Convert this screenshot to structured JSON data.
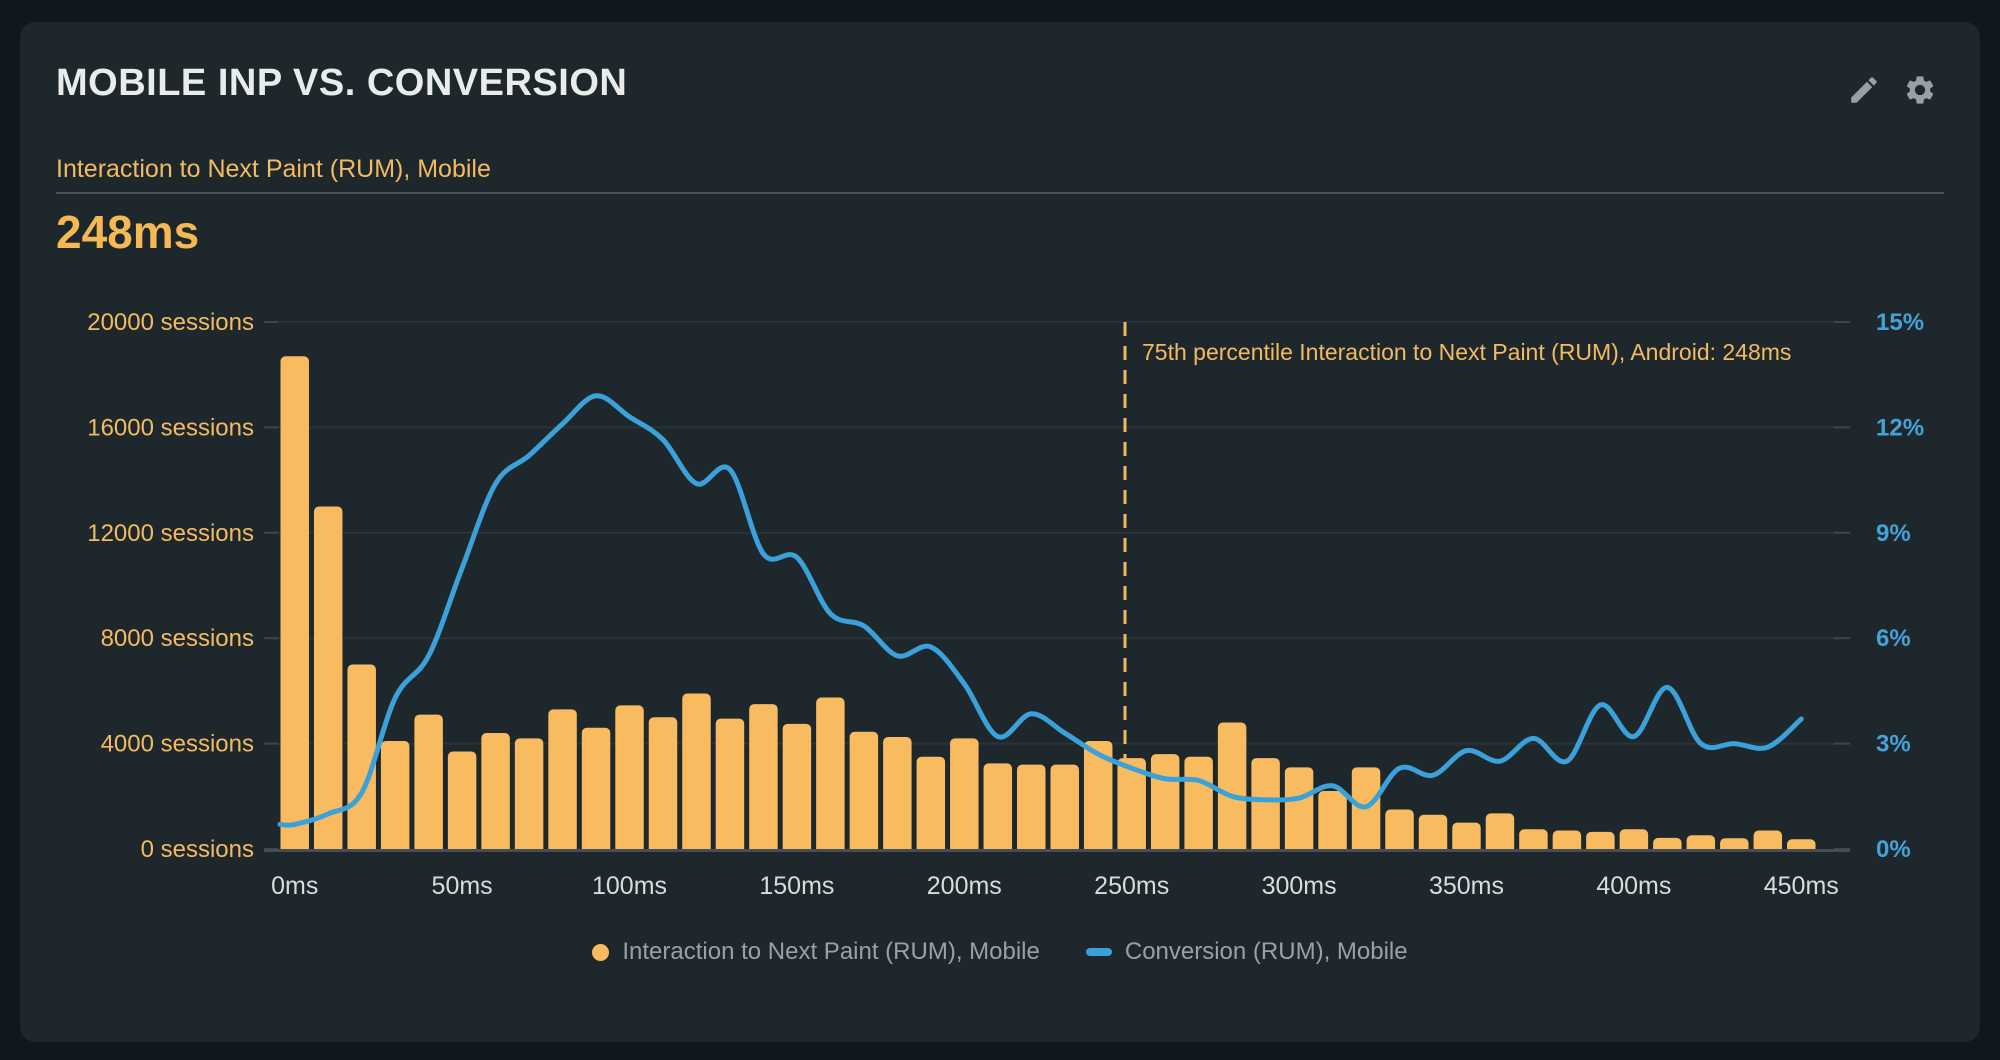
{
  "card": {
    "title": "MOBILE INP VS. CONVERSION",
    "subtitle": "Interaction to Next Paint (RUM), Mobile",
    "metric_value": "248ms",
    "icons": [
      "pencil-icon",
      "gear-icon"
    ]
  },
  "colors": {
    "page_bg": "#10181D",
    "card_bg": "#1E282C",
    "title_text": "#E9ECEB",
    "divider": "#4A5358",
    "metric_text": "#F5B954",
    "gridline": "#2A3438",
    "axis_baseline": "#454E54",
    "x_axis_text": "#D8DCDD",
    "legend_text": "#98A1A6",
    "icon": "#96A0A6"
  },
  "chart_data": {
    "type": "combo",
    "x_unit": "ms",
    "x": [
      0,
      10,
      20,
      30,
      40,
      50,
      60,
      70,
      80,
      90,
      100,
      110,
      120,
      130,
      140,
      150,
      160,
      170,
      180,
      190,
      200,
      210,
      220,
      230,
      240,
      250,
      260,
      270,
      280,
      290,
      300,
      310,
      320,
      330,
      340,
      350,
      360,
      370,
      380,
      390,
      400,
      410,
      420,
      430,
      440,
      450
    ],
    "x_tick_labels": [
      "0ms",
      "50ms",
      "100ms",
      "150ms",
      "200ms",
      "250ms",
      "300ms",
      "350ms",
      "400ms",
      "450ms"
    ],
    "series": [
      {
        "name": "Interaction to Next Paint (RUM), Mobile",
        "type": "bar",
        "y_axis": "left",
        "unit": "sessions",
        "color": "#F8BB5F",
        "values": [
          18700,
          13000,
          7000,
          4100,
          5100,
          3700,
          4400,
          4200,
          5300,
          4600,
          5450,
          5000,
          5900,
          4950,
          5500,
          4750,
          5750,
          4450,
          4250,
          3500,
          4200,
          3250,
          3200,
          3200,
          4100,
          3450,
          3600,
          3500,
          4800,
          3450,
          3100,
          2200,
          3100,
          1500,
          1300,
          1000,
          1350,
          750,
          700,
          650,
          750,
          420,
          520,
          410,
          700,
          370
        ]
      },
      {
        "name": "Conversion (RUM), Mobile",
        "type": "line",
        "y_axis": "right",
        "unit": "percent",
        "color": "#3BA1DA",
        "values": [
          0.7,
          1.0,
          1.6,
          4.3,
          5.5,
          8.0,
          10.4,
          11.2,
          12.1,
          12.9,
          12.3,
          11.65,
          10.4,
          10.8,
          8.4,
          8.3,
          6.7,
          6.35,
          5.5,
          5.75,
          4.7,
          3.2,
          3.85,
          3.3,
          2.7,
          2.3,
          2.0,
          1.95,
          1.5,
          1.4,
          1.45,
          1.8,
          1.2,
          2.3,
          2.1,
          2.8,
          2.5,
          3.15,
          2.5,
          4.1,
          3.2,
          4.6,
          3.0,
          3.0,
          2.9,
          3.7
        ]
      }
    ],
    "y_left": {
      "min": 0,
      "max": 20000,
      "tick_values": [
        20000,
        16000,
        12000,
        8000,
        4000,
        0
      ],
      "tick_labels": [
        "20000 sessions",
        "16000 sessions",
        "12000 sessions",
        "8000 sessions",
        "4000 sessions",
        "0 sessions"
      ],
      "color": "#F3BA62"
    },
    "y_right": {
      "min": 0,
      "max": 15,
      "tick_values": [
        15,
        12,
        9,
        6,
        3,
        0
      ],
      "tick_labels": [
        "15%",
        "12%",
        "9%",
        "6%",
        "3%",
        "0%"
      ],
      "color": "#45A2D9"
    },
    "annotation": {
      "x_ms": 248,
      "label": "75th percentile Interaction to Next Paint (RUM), Android: 248ms",
      "color": "#F0B860",
      "style": "dashed-vertical"
    },
    "legend_position": "bottom-center",
    "grid": "horizontal"
  }
}
